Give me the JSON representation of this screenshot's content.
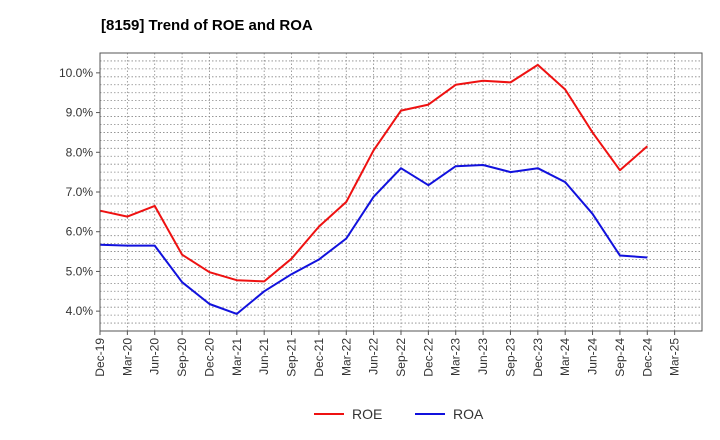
{
  "chart_data": {
    "type": "line",
    "title": "[8159]  Trend of ROE and ROA",
    "xlabel": "",
    "ylabel": "",
    "x": [
      "Dec-19",
      "Mar-20",
      "Jun-20",
      "Sep-20",
      "Dec-20",
      "Mar-21",
      "Jun-21",
      "Sep-21",
      "Dec-21",
      "Mar-22",
      "Jun-22",
      "Sep-22",
      "Dec-22",
      "Mar-23",
      "Jun-23",
      "Sep-23",
      "Dec-23",
      "Mar-24",
      "Jun-24",
      "Sep-24",
      "Dec-24",
      "Mar-25"
    ],
    "ylim": [
      3.5,
      10.5
    ],
    "yticks": [
      "4.0%",
      "5.0%",
      "6.0%",
      "7.0%",
      "8.0%",
      "9.0%",
      "10.0%"
    ],
    "grid": true,
    "legend_position": "bottom",
    "series": [
      {
        "name": "ROE",
        "color": "#ee1111",
        "values": [
          6.53,
          6.38,
          6.65,
          5.42,
          4.98,
          4.78,
          4.75,
          5.32,
          6.13,
          6.75,
          8.05,
          9.05,
          9.2,
          9.7,
          9.8,
          9.76,
          10.2,
          9.58,
          8.5,
          7.55,
          8.15,
          null
        ]
      },
      {
        "name": "ROA",
        "color": "#1111dd",
        "values": [
          5.67,
          5.65,
          5.65,
          4.73,
          4.18,
          3.93,
          4.5,
          4.93,
          5.3,
          5.83,
          6.88,
          7.6,
          7.17,
          7.65,
          7.68,
          7.5,
          7.6,
          7.25,
          6.45,
          5.4,
          5.35,
          null
        ]
      }
    ]
  }
}
